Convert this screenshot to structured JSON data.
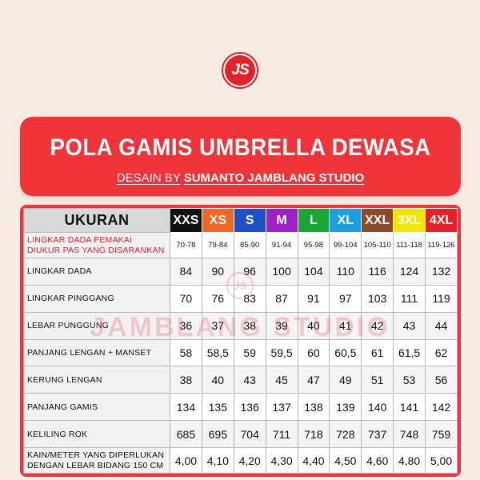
{
  "logo": {
    "text": "JS",
    "color": "#e32129"
  },
  "banner": {
    "title": "POLA GAMIS UMBRELLA DEWASA",
    "subtitle_prefix": "DESAIN BY",
    "subtitle_brand": "SUMANTO JAMBLANG STUDIO",
    "color": "#ee3339"
  },
  "table": {
    "header_label": "UKURAN",
    "sizes": [
      {
        "label": "XXS",
        "color": "#111111"
      },
      {
        "label": "XS",
        "color": "#f26522"
      },
      {
        "label": "S",
        "color": "#1e4fc9"
      },
      {
        "label": "M",
        "color": "#a020c8"
      },
      {
        "label": "L",
        "color": "#1aa635"
      },
      {
        "label": "XL",
        "color": "#1d9ee0"
      },
      {
        "label": "XXL",
        "color": "#8b4a2b"
      },
      {
        "label": "3XL",
        "color": "#f2e600"
      },
      {
        "label": "4XL",
        "color": "#e32129"
      }
    ],
    "range_row": {
      "label_line1": "LINGKAR DADA PEMAKAI",
      "label_line2": "DIUKUR PAS YANG DISARANKAN",
      "values": [
        "70-78",
        "79-84",
        "85-90",
        "91-94",
        "95-98",
        "99-104",
        "105-110",
        "111-118",
        "119-126"
      ]
    },
    "rows": [
      {
        "label": "LINGKAR DADA",
        "values": [
          "84",
          "90",
          "96",
          "100",
          "104",
          "110",
          "116",
          "124",
          "132"
        ]
      },
      {
        "label": "LINGKAR PINGGANG",
        "values": [
          "70",
          "76",
          "83",
          "87",
          "91",
          "97",
          "103",
          "111",
          "119"
        ]
      },
      {
        "label": "LEBAR PUNGGUNG",
        "values": [
          "36",
          "37",
          "38",
          "39",
          "40",
          "41",
          "42",
          "43",
          "44"
        ]
      },
      {
        "label": "PANJANG LENGAN + MANSET",
        "values": [
          "58",
          "58,5",
          "59",
          "59,5",
          "60",
          "60,5",
          "61",
          "61,5",
          "62"
        ]
      },
      {
        "label": "KERUNG LENGAN",
        "values": [
          "38",
          "40",
          "43",
          "45",
          "47",
          "49",
          "51",
          "53",
          "56"
        ]
      },
      {
        "label": "PANJANG GAMIS",
        "values": [
          "134",
          "135",
          "136",
          "137",
          "138",
          "139",
          "140",
          "141",
          "142"
        ]
      },
      {
        "label": "KELILING ROK",
        "values": [
          "685",
          "695",
          "704",
          "711",
          "718",
          "728",
          "737",
          "748",
          "759"
        ]
      }
    ],
    "fabric_row": {
      "label_line1": "KAIN/METER YANG DIPERLUKAN",
      "label_line2": "DENGAN LEBAR BIDANG 150 CM",
      "values": [
        "4,00",
        "4,10",
        "4,20",
        "4,30",
        "4,40",
        "4,50",
        "4,60",
        "4,80",
        "5,00"
      ]
    }
  },
  "watermark": {
    "logo": "JS",
    "text": "JAMBLANG STUDIO"
  }
}
